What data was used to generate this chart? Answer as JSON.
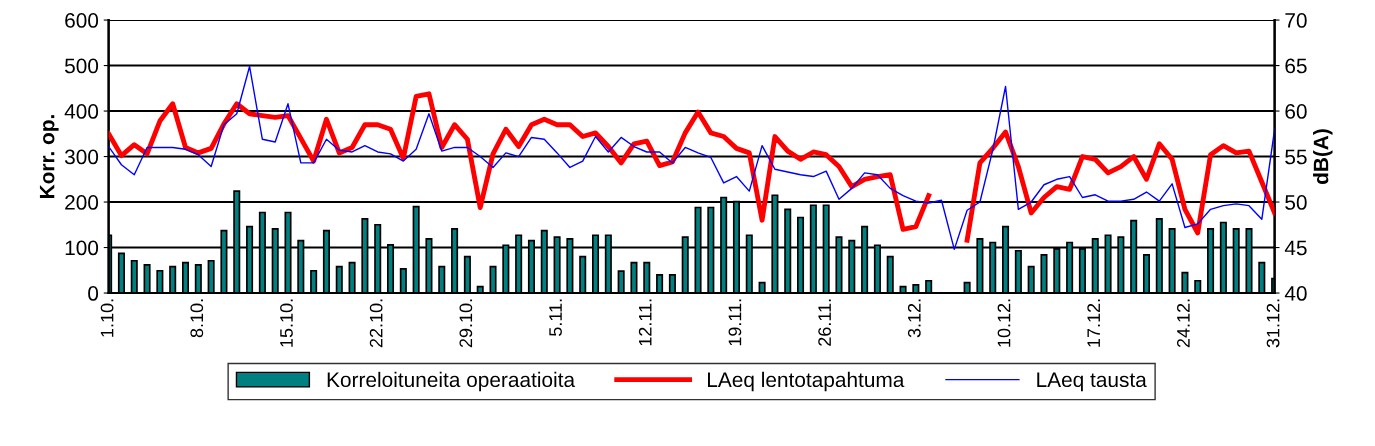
{
  "chart_data": {
    "type": "bar",
    "ylabel": "Korr. op.",
    "y2label": "dB(A)",
    "categories": [
      "1.10.",
      null,
      null,
      null,
      null,
      null,
      null,
      "8.10.",
      null,
      null,
      null,
      null,
      null,
      null,
      "15.10.",
      null,
      null,
      null,
      null,
      null,
      null,
      "22.10.",
      null,
      null,
      null,
      null,
      null,
      null,
      "29.10.",
      null,
      null,
      null,
      null,
      null,
      null,
      "5.11.",
      null,
      null,
      null,
      null,
      null,
      null,
      "12.11.",
      null,
      null,
      null,
      null,
      null,
      null,
      "19.11.",
      null,
      null,
      null,
      null,
      null,
      null,
      "26.11.",
      null,
      null,
      null,
      null,
      null,
      null,
      "3.12.",
      null,
      null,
      null,
      null,
      null,
      null,
      "10.12.",
      null,
      null,
      null,
      null,
      null,
      null,
      "17.12.",
      null,
      null,
      null,
      null,
      null,
      null,
      "24.12.",
      null,
      null,
      null,
      null,
      null,
      null,
      "31.12."
    ],
    "series": [
      {
        "name": "Korreloituneita operaatioita",
        "color": "#008080",
        "values": [
          127,
          87,
          71,
          62,
          49,
          58,
          67,
          62,
          71,
          137,
          224,
          146,
          177,
          141,
          177,
          115,
          49,
          137,
          58,
          67,
          163,
          150,
          106,
          53,
          190,
          119,
          58,
          141,
          80,
          14,
          58,
          105,
          127,
          115,
          137,
          123,
          119,
          80,
          127,
          127,
          48,
          67,
          67,
          40,
          40,
          123,
          188,
          188,
          210,
          201,
          127,
          23,
          215,
          184,
          166,
          193,
          193,
          123,
          115,
          146,
          105,
          80,
          14,
          18,
          27,
          null,
          null,
          23,
          119,
          111,
          146,
          93,
          58,
          84,
          97,
          111,
          97,
          119,
          127,
          123,
          159,
          84,
          163,
          141,
          45,
          27,
          141,
          155,
          141,
          141,
          67,
          32
        ]
      },
      {
        "name": "LAeq lentotapahtuma",
        "type": "line",
        "axis": "y2",
        "color": "#ff0000",
        "values": [
          57.5,
          55.1,
          56.3,
          55.3,
          58.9,
          60.8,
          56.0,
          55.4,
          55.9,
          58.6,
          60.8,
          59.7,
          59.5,
          59.3,
          59.5,
          57.0,
          54.5,
          59.1,
          55.4,
          56.0,
          58.5,
          58.5,
          58.0,
          54.8,
          61.6,
          61.9,
          56.0,
          58.5,
          56.9,
          49.4,
          55.3,
          58.0,
          56.1,
          58.5,
          59.1,
          58.5,
          58.5,
          57.2,
          57.6,
          56.1,
          54.3,
          56.4,
          56.7,
          54.0,
          54.4,
          57.6,
          59.9,
          57.6,
          57.2,
          55.9,
          55.4,
          48.0,
          57.2,
          55.6,
          54.7,
          55.5,
          55.2,
          53.9,
          51.7,
          52.5,
          52.8,
          53.0,
          47.0,
          47.3,
          50.7,
          null,
          null,
          45.8,
          54.3,
          55.9,
          57.7,
          53.9,
          48.8,
          50.5,
          51.7,
          51.4,
          55.0,
          54.7,
          53.2,
          53.9,
          55.0,
          52.5,
          56.4,
          54.7,
          49.2,
          46.6,
          55.2,
          56.2,
          55.4,
          55.6,
          52.2,
          48.8
        ]
      },
      {
        "name": "LAeq tausta",
        "type": "line",
        "axis": "y2",
        "color": "#0000ff",
        "values": [
          56.1,
          54.1,
          53.0,
          56.0,
          56.0,
          56.0,
          55.8,
          55.2,
          53.9,
          58.5,
          59.7,
          64.9,
          56.9,
          56.6,
          60.8,
          54.3,
          54.3,
          56.9,
          55.7,
          55.5,
          56.2,
          55.5,
          55.3,
          54.5,
          55.8,
          59.7,
          55.6,
          56.0,
          56.0,
          55.0,
          53.8,
          55.4,
          55.0,
          57.1,
          56.9,
          55.4,
          53.8,
          54.5,
          57.2,
          55.5,
          57.1,
          56.1,
          55.5,
          55.5,
          54.3,
          56.0,
          55.4,
          54.9,
          52.1,
          52.8,
          51.2,
          56.2,
          53.6,
          53.3,
          53.0,
          52.8,
          53.4,
          50.3,
          51.5,
          53.2,
          53.0,
          51.5,
          50.7,
          50.1,
          49.9,
          50.2,
          44.8,
          49.1,
          50.0,
          55.7,
          62.7,
          49.2,
          50.0,
          51.9,
          52.5,
          52.8,
          50.5,
          50.8,
          50.1,
          50.1,
          50.3,
          51.1,
          50.1,
          52.0,
          47.2,
          47.6,
          49.2,
          49.6,
          49.8,
          49.6,
          48.1,
          58.0
        ]
      }
    ],
    "ylim": [
      0,
      600
    ],
    "yticks": [
      0,
      100,
      200,
      300,
      400,
      500,
      600
    ],
    "y2lim": [
      40,
      70
    ],
    "y2ticks": [
      40,
      45,
      50,
      55,
      60,
      65,
      70
    ],
    "grid": "y",
    "legend": "bottom"
  }
}
